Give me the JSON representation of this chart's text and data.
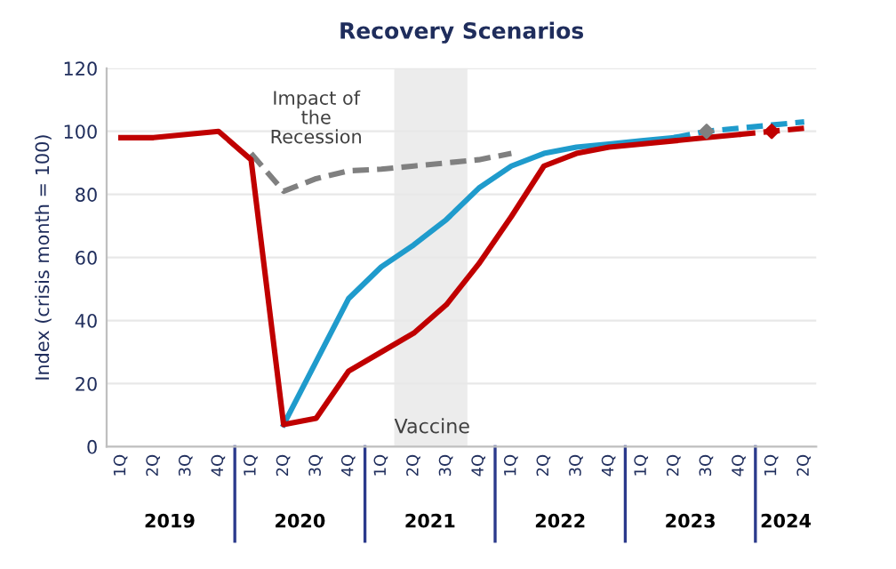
{
  "chart_data": {
    "type": "line",
    "title": "Recovery Scenarios",
    "ylabel": "Index (crisis month = 100)",
    "categories": [
      "1Q",
      "2Q",
      "3Q",
      "4Q",
      "1Q",
      "2Q",
      "3Q",
      "4Q",
      "1Q",
      "2Q",
      "3Q",
      "4Q",
      "1Q",
      "2Q",
      "3Q",
      "4Q",
      "1Q",
      "2Q",
      "3Q",
      "4Q",
      "1Q",
      "2Q"
    ],
    "series": [
      {
        "color": "#808080",
        "line_style": "dashed",
        "values": [
          null,
          null,
          null,
          null,
          93,
          81,
          85,
          87.5,
          88,
          89,
          90,
          91,
          93,
          null,
          null,
          null,
          null,
          null,
          null,
          null,
          null,
          null
        ]
      },
      {
        "color": "#1f9bcc",
        "line_style": "solid",
        "values": [
          null,
          null,
          null,
          null,
          null,
          7,
          27,
          47,
          57,
          64,
          72,
          82,
          89,
          93,
          95,
          96,
          97,
          98,
          null,
          null,
          null,
          null
        ]
      },
      {
        "color": "#1f9bcc",
        "line_style": "dashed",
        "values": [
          null,
          null,
          null,
          null,
          null,
          null,
          null,
          null,
          null,
          null,
          null,
          null,
          null,
          null,
          null,
          null,
          null,
          98,
          100,
          101,
          102,
          103
        ]
      },
      {
        "color": "#c00000",
        "line_style": "solid",
        "values": [
          98,
          98,
          99,
          100,
          91,
          7,
          9,
          24,
          30,
          36,
          45,
          58,
          73,
          89,
          93,
          95,
          96,
          97,
          98,
          99,
          null,
          null
        ]
      },
      {
        "color": "#c00000",
        "line_style": "dashed",
        "values": [
          null,
          null,
          null,
          null,
          null,
          null,
          null,
          null,
          null,
          null,
          null,
          null,
          null,
          null,
          null,
          null,
          null,
          null,
          null,
          99,
          100,
          101
        ]
      },
      {
        "type": "scatter",
        "marker": "diamond",
        "color": "#808080",
        "values": [
          null,
          null,
          null,
          null,
          null,
          null,
          null,
          null,
          null,
          null,
          null,
          null,
          null,
          null,
          null,
          null,
          null,
          null,
          100,
          null,
          null,
          null
        ]
      },
      {
        "type": "scatter",
        "marker": "diamond",
        "color": "#c00000",
        "values": [
          null,
          null,
          null,
          null,
          null,
          null,
          null,
          null,
          null,
          null,
          null,
          null,
          null,
          null,
          null,
          null,
          null,
          null,
          null,
          null,
          100,
          null
        ]
      }
    ],
    "ylim": [
      0,
      120
    ],
    "yticks": [
      0,
      20,
      40,
      60,
      80,
      100,
      120
    ],
    "grid": "y",
    "annotations": [
      "Impact of\nthe\nRecession",
      "Vaccine",
      "2019",
      "2020",
      "2021",
      "2022",
      "2023",
      "2024"
    ]
  }
}
